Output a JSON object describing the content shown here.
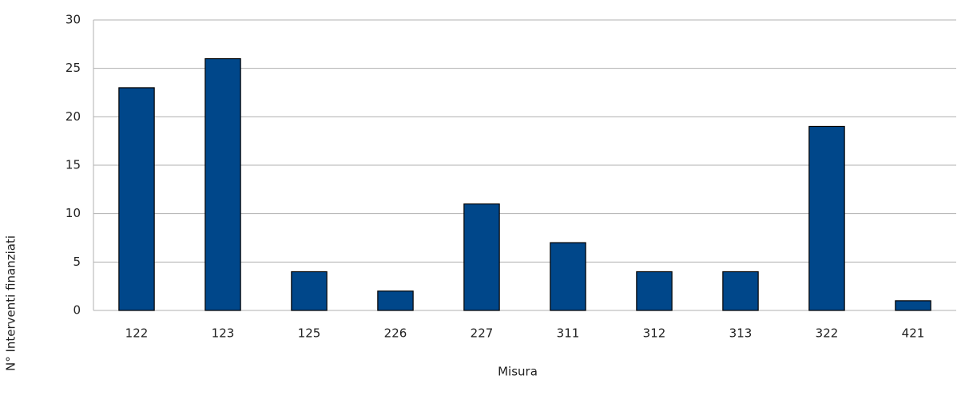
{
  "chart_data": {
    "type": "bar",
    "categories": [
      "122",
      "123",
      "125",
      "226",
      "227",
      "311",
      "312",
      "313",
      "322",
      "421"
    ],
    "values": [
      23,
      26,
      4,
      2,
      11,
      7,
      4,
      4,
      19,
      1
    ],
    "color": "#00478a",
    "x_label": "Misura",
    "y_label": "N° Interventi finanziati",
    "ylim": [
      0,
      30
    ],
    "yticks": [
      0,
      5,
      10,
      15,
      20,
      25,
      30
    ],
    "grid": true
  }
}
